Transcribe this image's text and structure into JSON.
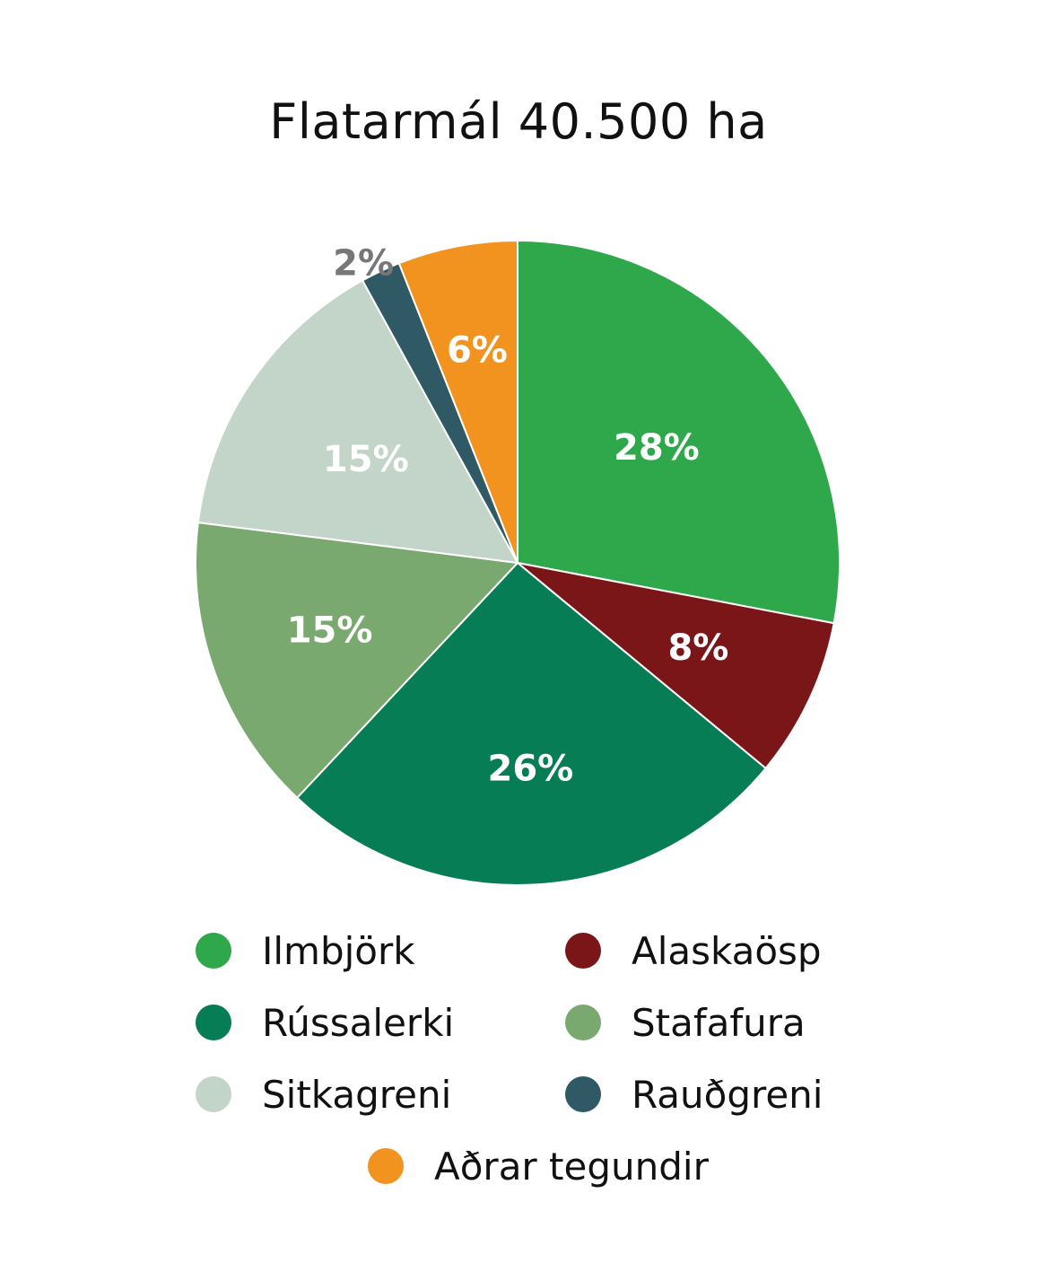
{
  "chart_data": {
    "type": "pie",
    "title": "Flatarmál 40.500 ha",
    "slices": [
      {
        "name": "Ilmbjörk",
        "value": 28,
        "label": "28%",
        "color": "#2fa84b",
        "label_color": "#ffffff"
      },
      {
        "name": "Alaskaösp",
        "value": 8,
        "label": "8%",
        "color": "#7a1618",
        "label_color": "#ffffff"
      },
      {
        "name": "Rússalerki",
        "value": 26,
        "label": "26%",
        "color": "#067d55",
        "label_color": "#ffffff"
      },
      {
        "name": "Stafafura",
        "value": 15,
        "label": "15%",
        "color": "#7aa96f",
        "label_color": "#ffffff"
      },
      {
        "name": "Sitkagreni",
        "value": 15,
        "label": "15%",
        "color": "#c3d4c9",
        "label_color": "#ffffff"
      },
      {
        "name": "Rauðgreni",
        "value": 2,
        "label": "2%",
        "color": "#2f5964",
        "label_color": "#777777"
      },
      {
        "name": "Aðrar tegundir",
        "value": 6,
        "label": "6%",
        "color": "#f29320",
        "label_color": "#ffffff"
      }
    ],
    "legend": [
      {
        "label": "Ilmbjörk",
        "color": "#2fa84b"
      },
      {
        "label": "Alaskaösp",
        "color": "#7a1618"
      },
      {
        "label": "Rússalerki",
        "color": "#067d55"
      },
      {
        "label": "Stafafura",
        "color": "#7aa96f"
      },
      {
        "label": "Sitkagreni",
        "color": "#c3d4c9"
      },
      {
        "label": "Rauðgreni",
        "color": "#2f5964"
      },
      {
        "label": "Aðrar tegundir",
        "color": "#f29320"
      }
    ],
    "legend_placement": "bottom"
  }
}
